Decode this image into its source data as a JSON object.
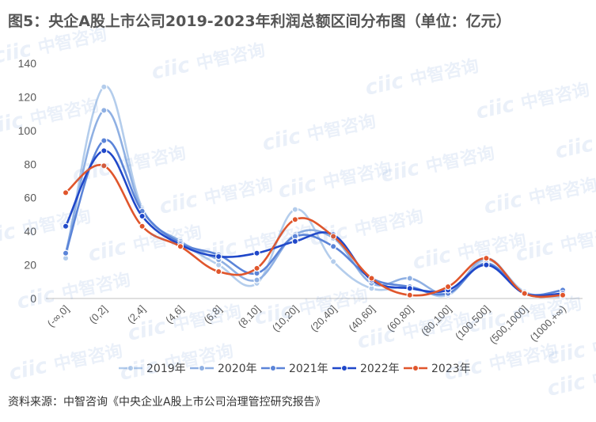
{
  "title": "图5：央企A股上市公司2019-2023年利润总额区间分布图（单位：亿元）",
  "source": "资料来源：中智咨询《中央企业A股上市公司治理管控研究报告》",
  "watermark": {
    "logo": "ciic",
    "text": "中智咨询"
  },
  "chart_data": {
    "type": "line",
    "smooth": true,
    "categories": [
      "(-∞,0]",
      "(0,2]",
      "(2,4]",
      "(4,6]",
      "(6,8]",
      "(8,10]",
      "(10,20]",
      "(20,40]",
      "(40,60]",
      "(60,80]",
      "(80,100]",
      "(100,500]",
      "(500,1000]",
      "(1000,+∞)"
    ],
    "ylim": [
      0,
      140
    ],
    "yticks": [
      0,
      20,
      40,
      60,
      80,
      100,
      120,
      140
    ],
    "grid": false,
    "legend": "bottom",
    "series": [
      {
        "name": "2019年",
        "color": "#b4cdec",
        "values": [
          24,
          126,
          54,
          34,
          20,
          9,
          53,
          22,
          6,
          7,
          2,
          23,
          4,
          1
        ]
      },
      {
        "name": "2020年",
        "color": "#8fb0e3",
        "values": [
          27,
          112,
          53,
          34,
          23,
          11,
          38,
          36,
          9,
          12,
          3,
          24,
          3,
          2
        ]
      },
      {
        "name": "2021年",
        "color": "#5b84d8",
        "values": [
          27,
          94,
          52,
          33,
          26,
          15,
          37,
          31,
          12,
          7,
          3,
          21,
          3,
          5
        ]
      },
      {
        "name": "2022年",
        "color": "#1f47c9",
        "values": [
          43,
          88,
          49,
          32,
          25,
          27,
          34,
          38,
          11,
          6,
          5,
          20,
          3,
          3
        ]
      },
      {
        "name": "2023年",
        "color": "#e0562c",
        "values": [
          63,
          79,
          43,
          31,
          16,
          18,
          47,
          37,
          12,
          2,
          7,
          24,
          3,
          2
        ]
      }
    ]
  }
}
